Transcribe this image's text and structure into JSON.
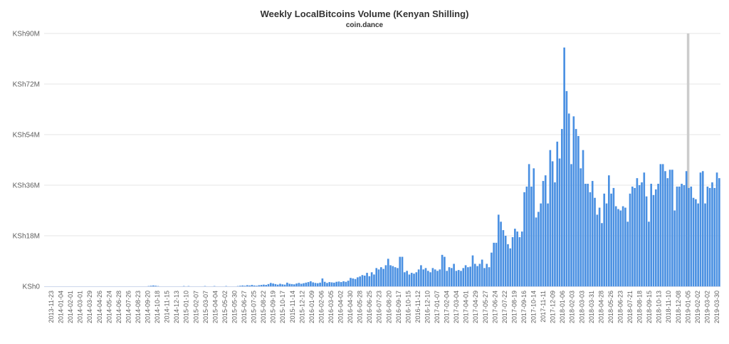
{
  "chart_data": {
    "type": "bar",
    "title": "Weekly LocalBitcoins Volume (Kenyan Shilling)",
    "subtitle": "coin.dance",
    "xlabel": "",
    "ylabel": "",
    "ylim": [
      0,
      90
    ],
    "y_unit": "KSh millions",
    "y_ticks": [
      "KSh0",
      "KSh18M",
      "KSh36M",
      "KSh54M",
      "KSh72M",
      "KSh90M"
    ],
    "y_tick_values": [
      0,
      18,
      36,
      54,
      72,
      90
    ],
    "x_tick_labels": [
      "2013-11-23",
      "2014-01-04",
      "2014-02-01",
      "2014-03-01",
      "2014-03-29",
      "2014-04-26",
      "2014-05-24",
      "2014-06-28",
      "2014-07-26",
      "2014-08-23",
      "2014-09-20",
      "2014-10-18",
      "2014-11-15",
      "2014-12-13",
      "2015-01-10",
      "2015-02-07",
      "2015-03-07",
      "2015-04-04",
      "2015-05-02",
      "2015-05-30",
      "2015-06-27",
      "2015-07-25",
      "2015-08-22",
      "2015-09-19",
      "2015-10-17",
      "2015-11-14",
      "2015-12-12",
      "2016-01-09",
      "2016-02-06",
      "2016-03-05",
      "2016-04-02",
      "2016-04-30",
      "2016-05-28",
      "2016-06-25",
      "2016-07-23",
      "2016-08-20",
      "2016-09-17",
      "2016-10-15",
      "2016-11-12",
      "2016-12-10",
      "2017-01-07",
      "2017-02-04",
      "2017-03-04",
      "2017-04-01",
      "2017-04-29",
      "2017-05-27",
      "2017-06-24",
      "2017-07-22",
      "2017-08-19",
      "2017-09-16",
      "2017-10-14",
      "2017-11-11",
      "2017-12-09",
      "2018-01-06",
      "2018-02-03",
      "2018-03-03",
      "2018-03-31",
      "2018-04-28",
      "2018-05-26",
      "2018-06-23",
      "2018-07-21",
      "2018-08-18",
      "2018-09-15",
      "2018-10-13",
      "2018-11-10",
      "2018-12-08",
      "2019-01-05",
      "2019-02-02",
      "2019-03-02",
      "2019-03-30"
    ],
    "highlight_week_index": 274,
    "series": [
      {
        "name": "Weekly Volume (KSh M)",
        "color": "#4a90e2",
        "values": [
          0,
          0,
          0,
          0,
          0,
          0,
          0,
          0,
          0,
          0,
          0,
          0,
          0,
          0,
          0,
          0,
          0,
          0,
          0,
          0,
          0,
          0,
          0,
          0,
          0,
          0,
          0,
          0,
          0,
          0,
          0,
          0,
          0,
          0,
          0,
          0,
          0,
          0,
          0,
          0,
          0,
          0,
          0,
          0,
          0.1,
          0.2,
          0.3,
          0.2,
          0.1,
          0,
          0,
          0,
          0,
          0,
          0,
          0,
          0,
          0,
          0,
          0.1,
          0,
          0.1,
          0,
          0,
          0,
          0,
          0,
          0,
          0.1,
          0,
          0,
          0,
          0.1,
          0,
          0,
          0,
          0,
          0.1,
          0,
          0,
          0,
          0,
          0.1,
          0.2,
          0.3,
          0.2,
          0.4,
          0.3,
          0.5,
          0.3,
          0.2,
          0.4,
          0.5,
          0.6,
          0.5,
          0.8,
          1.2,
          1.0,
          0.8,
          0.6,
          0.9,
          0.7,
          0.6,
          1.3,
          0.9,
          0.8,
          0.7,
          1.0,
          1.2,
          0.9,
          1.1,
          1.3,
          1.5,
          1.8,
          1.4,
          1.2,
          1.1,
          1.3,
          2.8,
          1.6,
          1.2,
          1.5,
          1.4,
          1.3,
          1.6,
          1.7,
          1.5,
          1.8,
          1.6,
          2.0,
          3.0,
          2.8,
          2.6,
          3.2,
          3.5,
          4.0,
          3.8,
          4.8,
          3.6,
          5.0,
          4.2,
          6.5,
          6.0,
          6.8,
          6.2,
          7.5,
          9.8,
          7.5,
          7.2,
          6.8,
          6.5,
          10.5,
          10.5,
          5.0,
          5.5,
          4.2,
          4.8,
          4.5,
          5.0,
          6.0,
          7.5,
          6.0,
          6.5,
          5.5,
          5.0,
          6.5,
          6.0,
          5.5,
          6.0,
          11.2,
          10.5,
          5.5,
          6.8,
          6.5,
          8.0,
          5.5,
          5.8,
          5.5,
          6.5,
          7.5,
          6.8,
          7.0,
          11.0,
          8.0,
          7.2,
          8.0,
          9.5,
          6.5,
          8.0,
          6.8,
          12.0,
          15.5,
          15.5,
          25.5,
          23.0,
          20.0,
          18.0,
          15.0,
          13.5,
          17.5,
          20.5,
          19.5,
          17.5,
          19.5,
          33.5,
          35.5,
          43.5,
          35.5,
          42.0,
          24.5,
          26.5,
          29.5,
          37.5,
          39.5,
          29.5,
          48.5,
          44.5,
          37.0,
          51.5,
          45.5,
          56.0,
          85.0,
          69.5,
          61.5,
          43.5,
          60.5,
          56.0,
          53.5,
          42.0,
          48.5,
          36.5,
          36.5,
          33.5,
          37.5,
          31.5,
          25.5,
          28.0,
          22.5,
          33.0,
          29.5,
          39.5,
          33.0,
          35.0,
          28.5,
          27.5,
          27.0,
          28.5,
          28.0,
          23.0,
          33.0,
          35.5,
          35.0,
          38.5,
          36.0,
          37.0,
          40.5,
          32.0,
          23.0,
          36.5,
          32.5,
          34.5,
          36.5,
          43.5,
          43.5,
          41.0,
          38.5,
          41.5,
          41.5,
          27.0,
          35.5,
          35.5,
          36.5,
          36.0,
          41.0,
          35.0,
          35.5,
          31.5,
          31.0,
          29.5,
          40.5,
          41.0,
          29.5,
          35.5,
          35.0,
          37.0,
          35.0,
          40.5,
          38.5
        ]
      }
    ]
  }
}
